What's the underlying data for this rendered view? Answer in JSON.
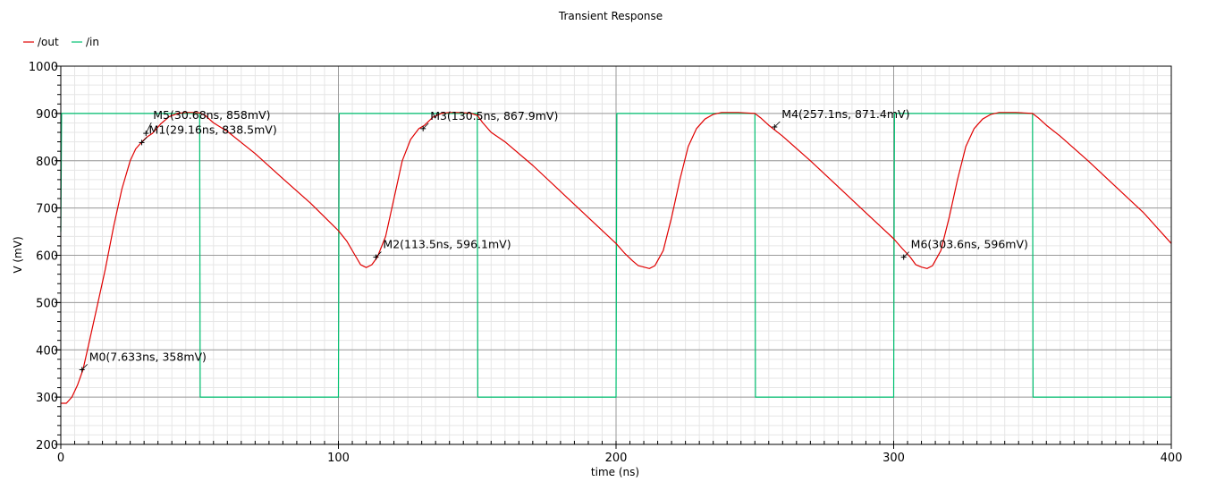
{
  "chart_data": {
    "type": "line",
    "title": "Transient Response",
    "xlabel": "time (ns)",
    "ylabel": "V (mV)",
    "xlim": [
      0,
      400
    ],
    "ylim": [
      200,
      1000
    ],
    "x_ticks": [
      0,
      100,
      200,
      300,
      400
    ],
    "y_ticks": [
      200,
      300,
      400,
      500,
      600,
      700,
      800,
      900,
      1000
    ],
    "grid": true,
    "legend_position": "top-left",
    "series": [
      {
        "name": "/out",
        "color": "#e00000",
        "x": [
          0,
          2,
          4,
          6,
          8,
          10,
          13,
          16,
          19,
          22,
          25,
          27,
          29,
          31,
          33,
          36,
          39,
          42,
          45,
          48,
          50,
          52,
          55,
          60,
          70,
          80,
          90,
          100,
          103,
          106,
          108,
          110,
          112,
          114,
          117,
          120,
          123,
          126,
          129,
          131,
          134,
          137,
          140,
          143,
          146,
          148,
          150,
          152,
          155,
          160,
          170,
          180,
          190,
          200,
          203,
          206,
          208,
          210,
          212,
          214,
          217,
          220,
          223,
          226,
          229,
          232,
          235,
          238,
          241,
          244,
          247,
          250,
          252,
          255,
          260,
          270,
          280,
          290,
          300,
          303,
          306,
          308,
          310,
          312,
          314,
          317,
          320,
          323,
          326,
          329,
          332,
          335,
          338,
          341,
          344,
          347,
          350,
          352,
          355,
          360,
          370,
          380,
          390,
          400
        ],
        "y": [
          287,
          287,
          300,
          325,
          358,
          410,
          490,
          570,
          660,
          740,
          800,
          825,
          838.5,
          850,
          858,
          878,
          893,
          900,
          902,
          902,
          901,
          896,
          880,
          862,
          815,
          762,
          710,
          652,
          630,
          600,
          580,
          574,
          580,
          596,
          640,
          720,
          800,
          845,
          867.9,
          875,
          892,
          900,
          902,
          902,
          901,
          900,
          896,
          880,
          860,
          840,
          790,
          735,
          680,
          625,
          605,
          588,
          578,
          575,
          572,
          578,
          610,
          680,
          760,
          830,
          868,
          888,
          898,
          902,
          902,
          902,
          901,
          900,
          891,
          875,
          852,
          800,
          745,
          690,
          635,
          615,
          596,
          580,
          575,
          572,
          578,
          610,
          680,
          760,
          830,
          868,
          888,
          898,
          902,
          902,
          902,
          901,
          900,
          891,
          875,
          852,
          800,
          745,
          690,
          625
        ]
      },
      {
        "name": "/in",
        "color": "#00c070",
        "x": [
          0,
          0.3,
          0.6,
          50,
          50.2,
          100,
          100.3,
          150,
          150.2,
          200,
          200.3,
          250,
          250.2,
          300,
          300.3,
          350,
          350.2,
          400
        ],
        "y": [
          650,
          900,
          900,
          900,
          300,
          300,
          900,
          900,
          300,
          300,
          900,
          900,
          300,
          300,
          900,
          900,
          300,
          300
        ]
      }
    ],
    "markers": [
      {
        "label": "M0(7.633ns, 358mV)",
        "x": 7.633,
        "y": 358
      },
      {
        "label": "M1(29.16ns, 838.5mV)",
        "x": 29.16,
        "y": 838.5
      },
      {
        "label": "M5(30.68ns, 858mV)",
        "x": 30.68,
        "y": 858
      },
      {
        "label": "M2(113.5ns, 596.1mV)",
        "x": 113.5,
        "y": 596.1
      },
      {
        "label": "M3(130.5ns, 867.9mV)",
        "x": 130.5,
        "y": 867.9
      },
      {
        "label": "M4(257.1ns, 871.4mV)",
        "x": 257.1,
        "y": 871.4
      },
      {
        "label": "M6(303.6ns, 596mV)",
        "x": 303.6,
        "y": 596
      }
    ]
  }
}
